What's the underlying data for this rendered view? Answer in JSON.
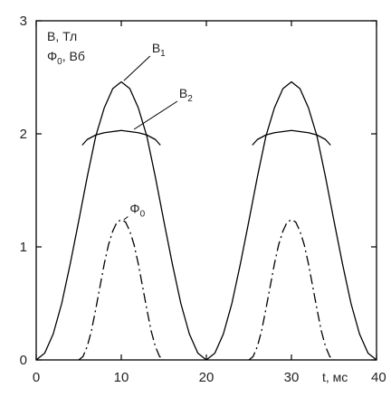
{
  "chart_data": {
    "type": "line",
    "xlim": [
      0,
      40
    ],
    "ylim": [
      0,
      3
    ],
    "x_ticks": [
      0,
      10,
      20,
      30,
      40
    ],
    "y_ticks": [
      0,
      1,
      2,
      3
    ],
    "x_tick_labels": [
      "0",
      "10",
      "20",
      "30",
      "40"
    ],
    "y_tick_labels": [
      "0",
      "1",
      "2",
      "3"
    ],
    "xlabel": "t, мс",
    "ylabel_line1": "B, Тл",
    "ylabel_line2_base": "Φ",
    "ylabel_line2_sub": "0",
    "ylabel_line2_rest": ", Вб",
    "grid": false,
    "series": [
      {
        "name_base": "B",
        "name_sub": "1",
        "style": "solid",
        "color": "#000000",
        "x": [
          0,
          1,
          2,
          3,
          4,
          5,
          6,
          7,
          8,
          9,
          10,
          11,
          12,
          13,
          14,
          15,
          16,
          17,
          18,
          19,
          20,
          21,
          22,
          23,
          24,
          25,
          26,
          27,
          28,
          29,
          30,
          31,
          32,
          33,
          34,
          35,
          36,
          37,
          38,
          39,
          40
        ],
        "y": [
          0,
          0.06,
          0.23,
          0.5,
          0.85,
          1.23,
          1.62,
          1.98,
          2.23,
          2.4,
          2.46,
          2.4,
          2.23,
          1.98,
          1.62,
          1.23,
          0.85,
          0.5,
          0.23,
          0.06,
          0,
          0.06,
          0.23,
          0.5,
          0.85,
          1.23,
          1.62,
          1.98,
          2.23,
          2.4,
          2.46,
          2.4,
          2.23,
          1.98,
          1.62,
          1.23,
          0.85,
          0.5,
          0.23,
          0.06,
          0
        ]
      },
      {
        "name_base": "B",
        "name_sub": "2",
        "style": "solid",
        "color": "#000000",
        "x": [
          5.4,
          6,
          7,
          8,
          9,
          10,
          11,
          12,
          13,
          14,
          14.6,
          25.4,
          26,
          27,
          28,
          29,
          30,
          31,
          32,
          33,
          34,
          34.6
        ],
        "y": [
          1.9,
          1.95,
          1.99,
          2.01,
          2.02,
          2.03,
          2.02,
          2.01,
          1.99,
          1.95,
          1.9,
          1.9,
          1.95,
          1.99,
          2.01,
          2.02,
          2.03,
          2.02,
          2.01,
          1.99,
          1.95,
          1.9
        ]
      },
      {
        "name_base": "Φ",
        "name_sub": "0",
        "style": "dashdot",
        "color": "#000000",
        "x": [
          5,
          5.5,
          6,
          6.5,
          7,
          7.5,
          8,
          8.5,
          9,
          9.5,
          10,
          10.5,
          11,
          11.5,
          12,
          12.5,
          13,
          13.5,
          14,
          14.5,
          15,
          25,
          25.5,
          26,
          26.5,
          27,
          27.5,
          28,
          28.5,
          29,
          29.5,
          30,
          30.5,
          31,
          31.5,
          32,
          32.5,
          33,
          33.5,
          34,
          34.5,
          35
        ],
        "y": [
          0,
          0.03,
          0.12,
          0.26,
          0.45,
          0.65,
          0.85,
          1.02,
          1.14,
          1.22,
          1.24,
          1.22,
          1.14,
          1.02,
          0.85,
          0.65,
          0.45,
          0.26,
          0.12,
          0.03,
          0,
          0,
          0.03,
          0.12,
          0.26,
          0.45,
          0.65,
          0.85,
          1.02,
          1.14,
          1.22,
          1.24,
          1.22,
          1.14,
          1.02,
          0.85,
          0.65,
          0.45,
          0.26,
          0.12,
          0.03,
          0
        ]
      }
    ],
    "annotations": [
      {
        "base": "B",
        "sub": "1",
        "x": 13.6,
        "y": 2.72,
        "line_to": [
          10.3,
          2.47
        ]
      },
      {
        "base": "B",
        "sub": "2",
        "x": 16.8,
        "y": 2.32,
        "line_to": [
          11.5,
          2.04
        ]
      },
      {
        "base": "Φ",
        "sub": "0",
        "x": 11.0,
        "y": 1.3,
        "line_to": [
          10.3,
          1.24
        ]
      }
    ]
  }
}
